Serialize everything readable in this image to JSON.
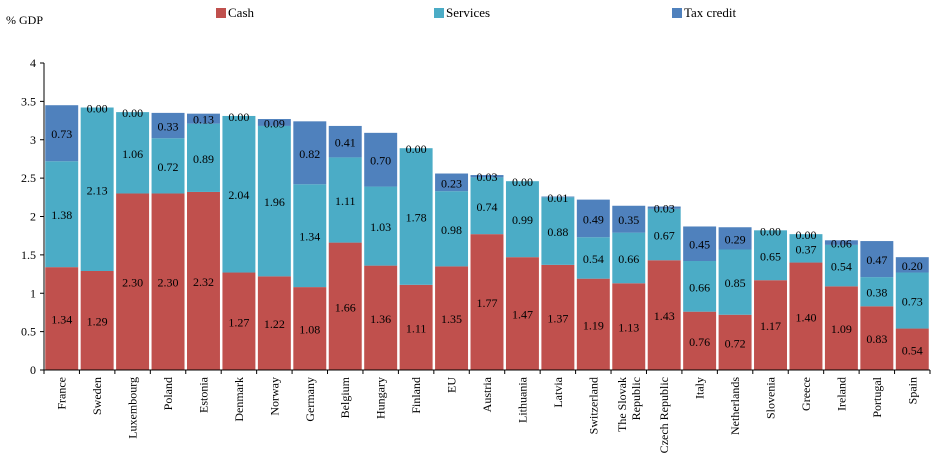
{
  "chart_data": {
    "type": "bar",
    "stacked": true,
    "ylabel": "% GDP",
    "ylim": [
      0,
      4
    ],
    "yticks": [
      0,
      0.5,
      1,
      1.5,
      2,
      2.5,
      3,
      3.5,
      4
    ],
    "ytick_labels": [
      "0",
      "0.5",
      "1",
      "1.5",
      "2",
      "2.5",
      "3",
      "3.5",
      "4"
    ],
    "grid": false,
    "legend_position": "top",
    "categories": [
      "France",
      "Sweden",
      "Luxembourg",
      "Poland",
      "Estonia",
      "Denmark",
      "Norway",
      "Germany",
      "Belgium",
      "Hungary",
      "Finland",
      "EU",
      "Austria",
      "Lithuania",
      "Latvia",
      "Switzerland",
      "The Slovak Republic",
      "Czech Republic",
      "Italy",
      "Netherlands",
      "Slovenia",
      "Greece",
      "Ireland",
      "Portugal",
      "Spain"
    ],
    "category_lines": [
      [
        "France"
      ],
      [
        "Sweden"
      ],
      [
        "Luxembourg"
      ],
      [
        "Poland"
      ],
      [
        "Estonia"
      ],
      [
        "Denmark"
      ],
      [
        "Norway"
      ],
      [
        "Germany"
      ],
      [
        "Belgium"
      ],
      [
        "Hungary"
      ],
      [
        "Finland"
      ],
      [
        "EU"
      ],
      [
        "Austria"
      ],
      [
        "Lithuania"
      ],
      [
        "Latvia"
      ],
      [
        "Switzerland"
      ],
      [
        "The Slovak",
        "Republic"
      ],
      [
        "Czech Republic"
      ],
      [
        "Italy"
      ],
      [
        "Netherlands"
      ],
      [
        "Slovenia"
      ],
      [
        "Greece"
      ],
      [
        "Ireland"
      ],
      [
        "Portugal"
      ],
      [
        "Spain"
      ]
    ],
    "series": [
      {
        "name": "Cash",
        "color": "#c0504d",
        "values": [
          1.34,
          1.29,
          2.3,
          2.3,
          2.32,
          1.27,
          1.22,
          1.08,
          1.66,
          1.36,
          1.11,
          1.35,
          1.77,
          1.47,
          1.37,
          1.19,
          1.13,
          1.43,
          0.76,
          0.72,
          1.17,
          1.4,
          1.09,
          0.83,
          0.54
        ],
        "labels": [
          "1.34",
          "1.29",
          "2.30",
          "2.30",
          "2.32",
          "1.27",
          "1.22",
          "1.08",
          "1.66",
          "1.36",
          "1.11",
          "1.35",
          "1.77",
          "1.47",
          "1.37",
          "1.19",
          "1.13",
          "1.43",
          "0.76",
          "0.72",
          "1.17",
          "1.40",
          "1.09",
          "0.83",
          "0.54"
        ]
      },
      {
        "name": "Services",
        "color": "#4bacc6",
        "values": [
          1.38,
          2.13,
          1.06,
          0.72,
          0.89,
          2.04,
          1.96,
          1.34,
          1.11,
          1.03,
          1.78,
          0.98,
          0.74,
          0.99,
          0.88,
          0.54,
          0.66,
          0.67,
          0.66,
          0.85,
          0.65,
          0.37,
          0.54,
          0.38,
          0.73
        ],
        "labels": [
          "1.38",
          "2.13",
          "1.06",
          "0.72",
          "0.89",
          "2.04",
          "1.96",
          "1.34",
          "1.11",
          "1.03",
          "1.78",
          "0.98",
          "0.74",
          "0.99",
          "0.88",
          "0.54",
          "0.66",
          "0.67",
          "0.66",
          "0.85",
          "0.65",
          "0.37",
          "0.54",
          "0.38",
          "0.73"
        ]
      },
      {
        "name": "Tax credit",
        "color": "#4f81bd",
        "values": [
          0.73,
          0.0,
          0.0,
          0.33,
          0.13,
          0.0,
          0.09,
          0.82,
          0.41,
          0.7,
          0.0,
          0.23,
          0.03,
          0.0,
          0.01,
          0.49,
          0.35,
          0.03,
          0.45,
          0.29,
          0.0,
          0.0,
          0.06,
          0.47,
          0.2
        ],
        "labels": [
          "0.73",
          "0.00",
          "0.00",
          "0.33",
          "0.13",
          "0.00",
          "0.09",
          "0.82",
          "0.41",
          "0.70",
          "0.00",
          "0.23",
          "0.03",
          "0.00",
          "0.01",
          "0.49",
          "0.35",
          "0.03",
          "0.45",
          "0.29",
          "0.00",
          "0.00",
          "0.06",
          "0.47",
          "0.20"
        ]
      }
    ]
  }
}
